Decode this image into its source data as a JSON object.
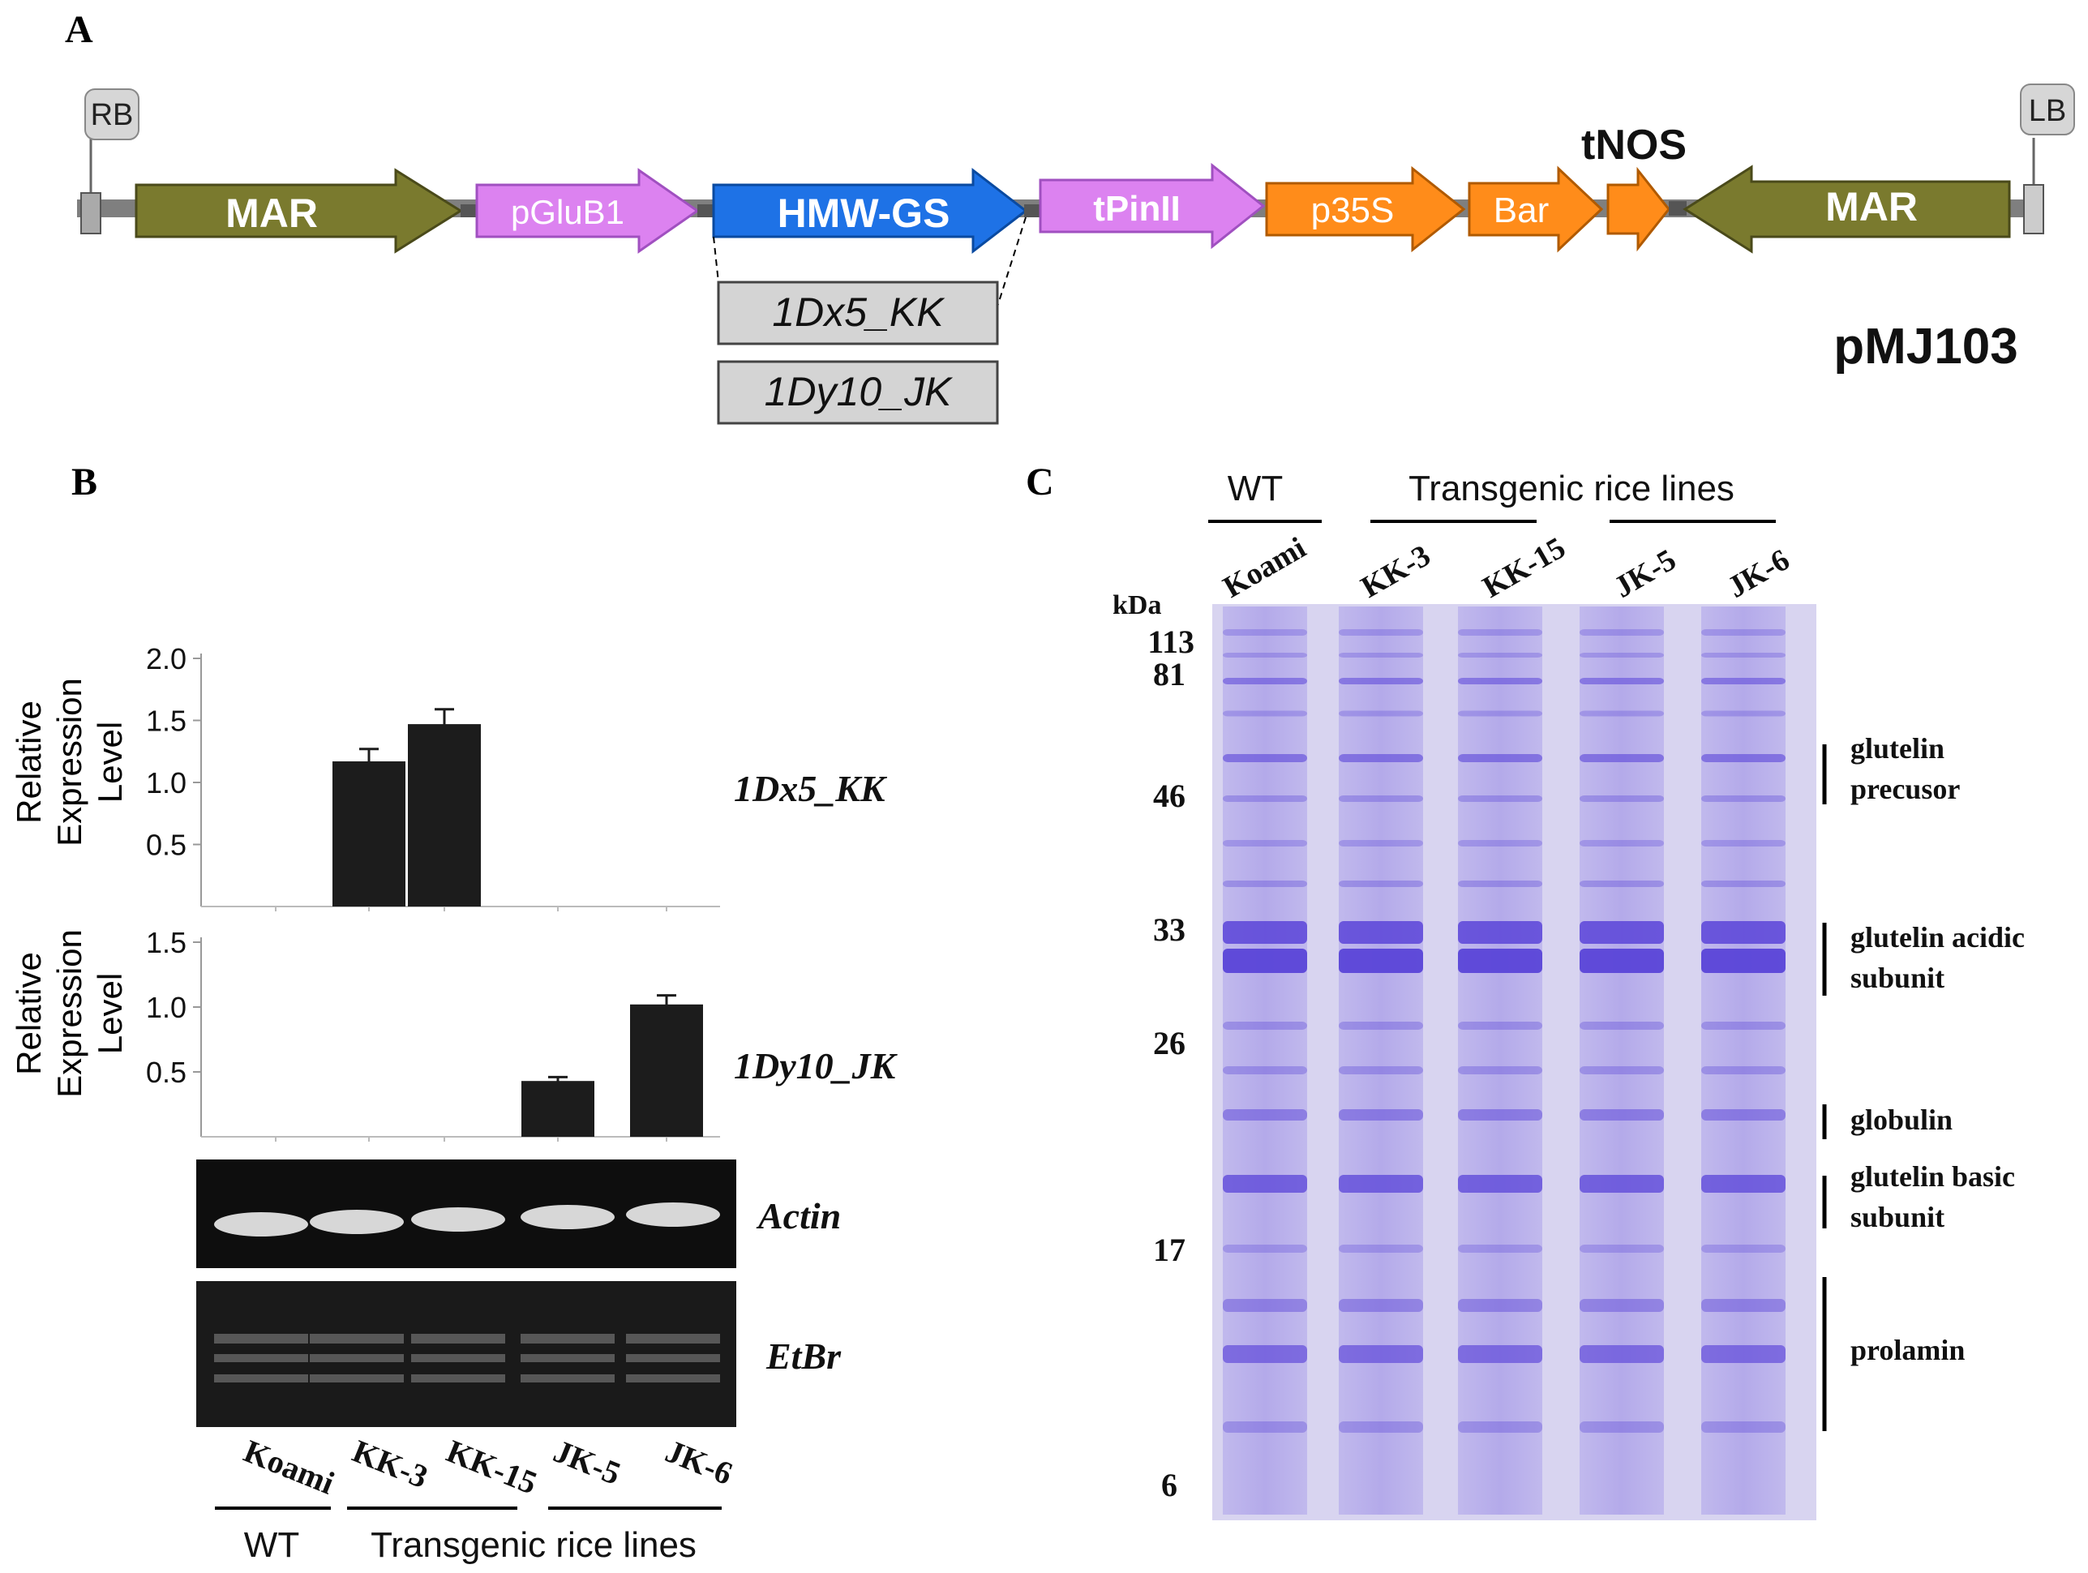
{
  "panels": {
    "a": "A",
    "b": "B",
    "c": "C"
  },
  "construct": {
    "name": "pMJ103",
    "rb": "RB",
    "lb": "LB",
    "tnos": "tNOS",
    "elements": {
      "mar1": "MAR",
      "pglub1": "pGluB1",
      "hmw": "HMW-GS",
      "tpin": "tPinII",
      "p35s": "p35S",
      "bar": "Bar",
      "mar2": "MAR"
    },
    "inserts": [
      "1Dx5_KK",
      "1Dy10_JK"
    ],
    "colors": {
      "mar": "#7a7a2e",
      "pink": "#dc82f0",
      "blue": "#1e72e6",
      "orange": "#ff8c1a",
      "backbone": "#7f7f7f"
    }
  },
  "panel_b": {
    "ylabel_line1": "Relative",
    "ylabel_line2": "Expression",
    "ylabel_line3": "Level",
    "gene1": "1Dx5_KK",
    "gene2": "1Dy10_JK",
    "actin": "Actin",
    "etbr": "EtBr",
    "lanes": [
      "Koami",
      "KK-3",
      "KK-15",
      "JK-5",
      "JK-6"
    ],
    "wt": "WT",
    "transgenic": "Transgenic rice lines",
    "chart1_ticks": [
      "0.5",
      "1.0",
      "1.5",
      "2.0"
    ],
    "chart2_ticks": [
      "0.5",
      "1.0",
      "1.5"
    ]
  },
  "chart_data": [
    {
      "type": "bar",
      "title": "1Dx5_KK",
      "ylabel": "Relative Expression Level",
      "categories": [
        "Koami",
        "KK-3",
        "KK-15",
        "JK-5",
        "JK-6"
      ],
      "values": [
        0,
        1.17,
        1.47,
        0,
        0
      ],
      "errors": [
        0,
        0.1,
        0.12,
        0,
        0
      ],
      "ylim": [
        0,
        2.0
      ],
      "yticks": [
        0.5,
        1.0,
        1.5,
        2.0
      ]
    },
    {
      "type": "bar",
      "title": "1Dy10_JK",
      "ylabel": "Relative Expression Level",
      "categories": [
        "Koami",
        "KK-3",
        "KK-15",
        "JK-5",
        "JK-6"
      ],
      "values": [
        0,
        0,
        0,
        0.43,
        1.02
      ],
      "errors": [
        0,
        0,
        0,
        0.03,
        0.07
      ],
      "ylim": [
        0,
        1.5
      ],
      "yticks": [
        0.5,
        1.0,
        1.5
      ]
    }
  ],
  "panel_c": {
    "wt": "WT",
    "transgenic": "Transgenic rice lines",
    "lanes": [
      "Koami",
      "KK-3",
      "KK-15",
      "JK-5",
      "JK-6"
    ],
    "kda": "kDa",
    "markers": [
      "113",
      "81",
      "46",
      "33",
      "26",
      "17",
      "6"
    ],
    "annotations": {
      "glutelin_precursor_1": "glutelin",
      "glutelin_precursor_2": "precusor",
      "acidic_1": "glutelin acidic",
      "acidic_2": "subunit",
      "globulin": "globulin",
      "basic_1": "glutelin basic",
      "basic_2": "subunit",
      "prolamin": "prolamin"
    },
    "gel_color": "#d8d4f0",
    "band_color": "#5a44d8"
  }
}
